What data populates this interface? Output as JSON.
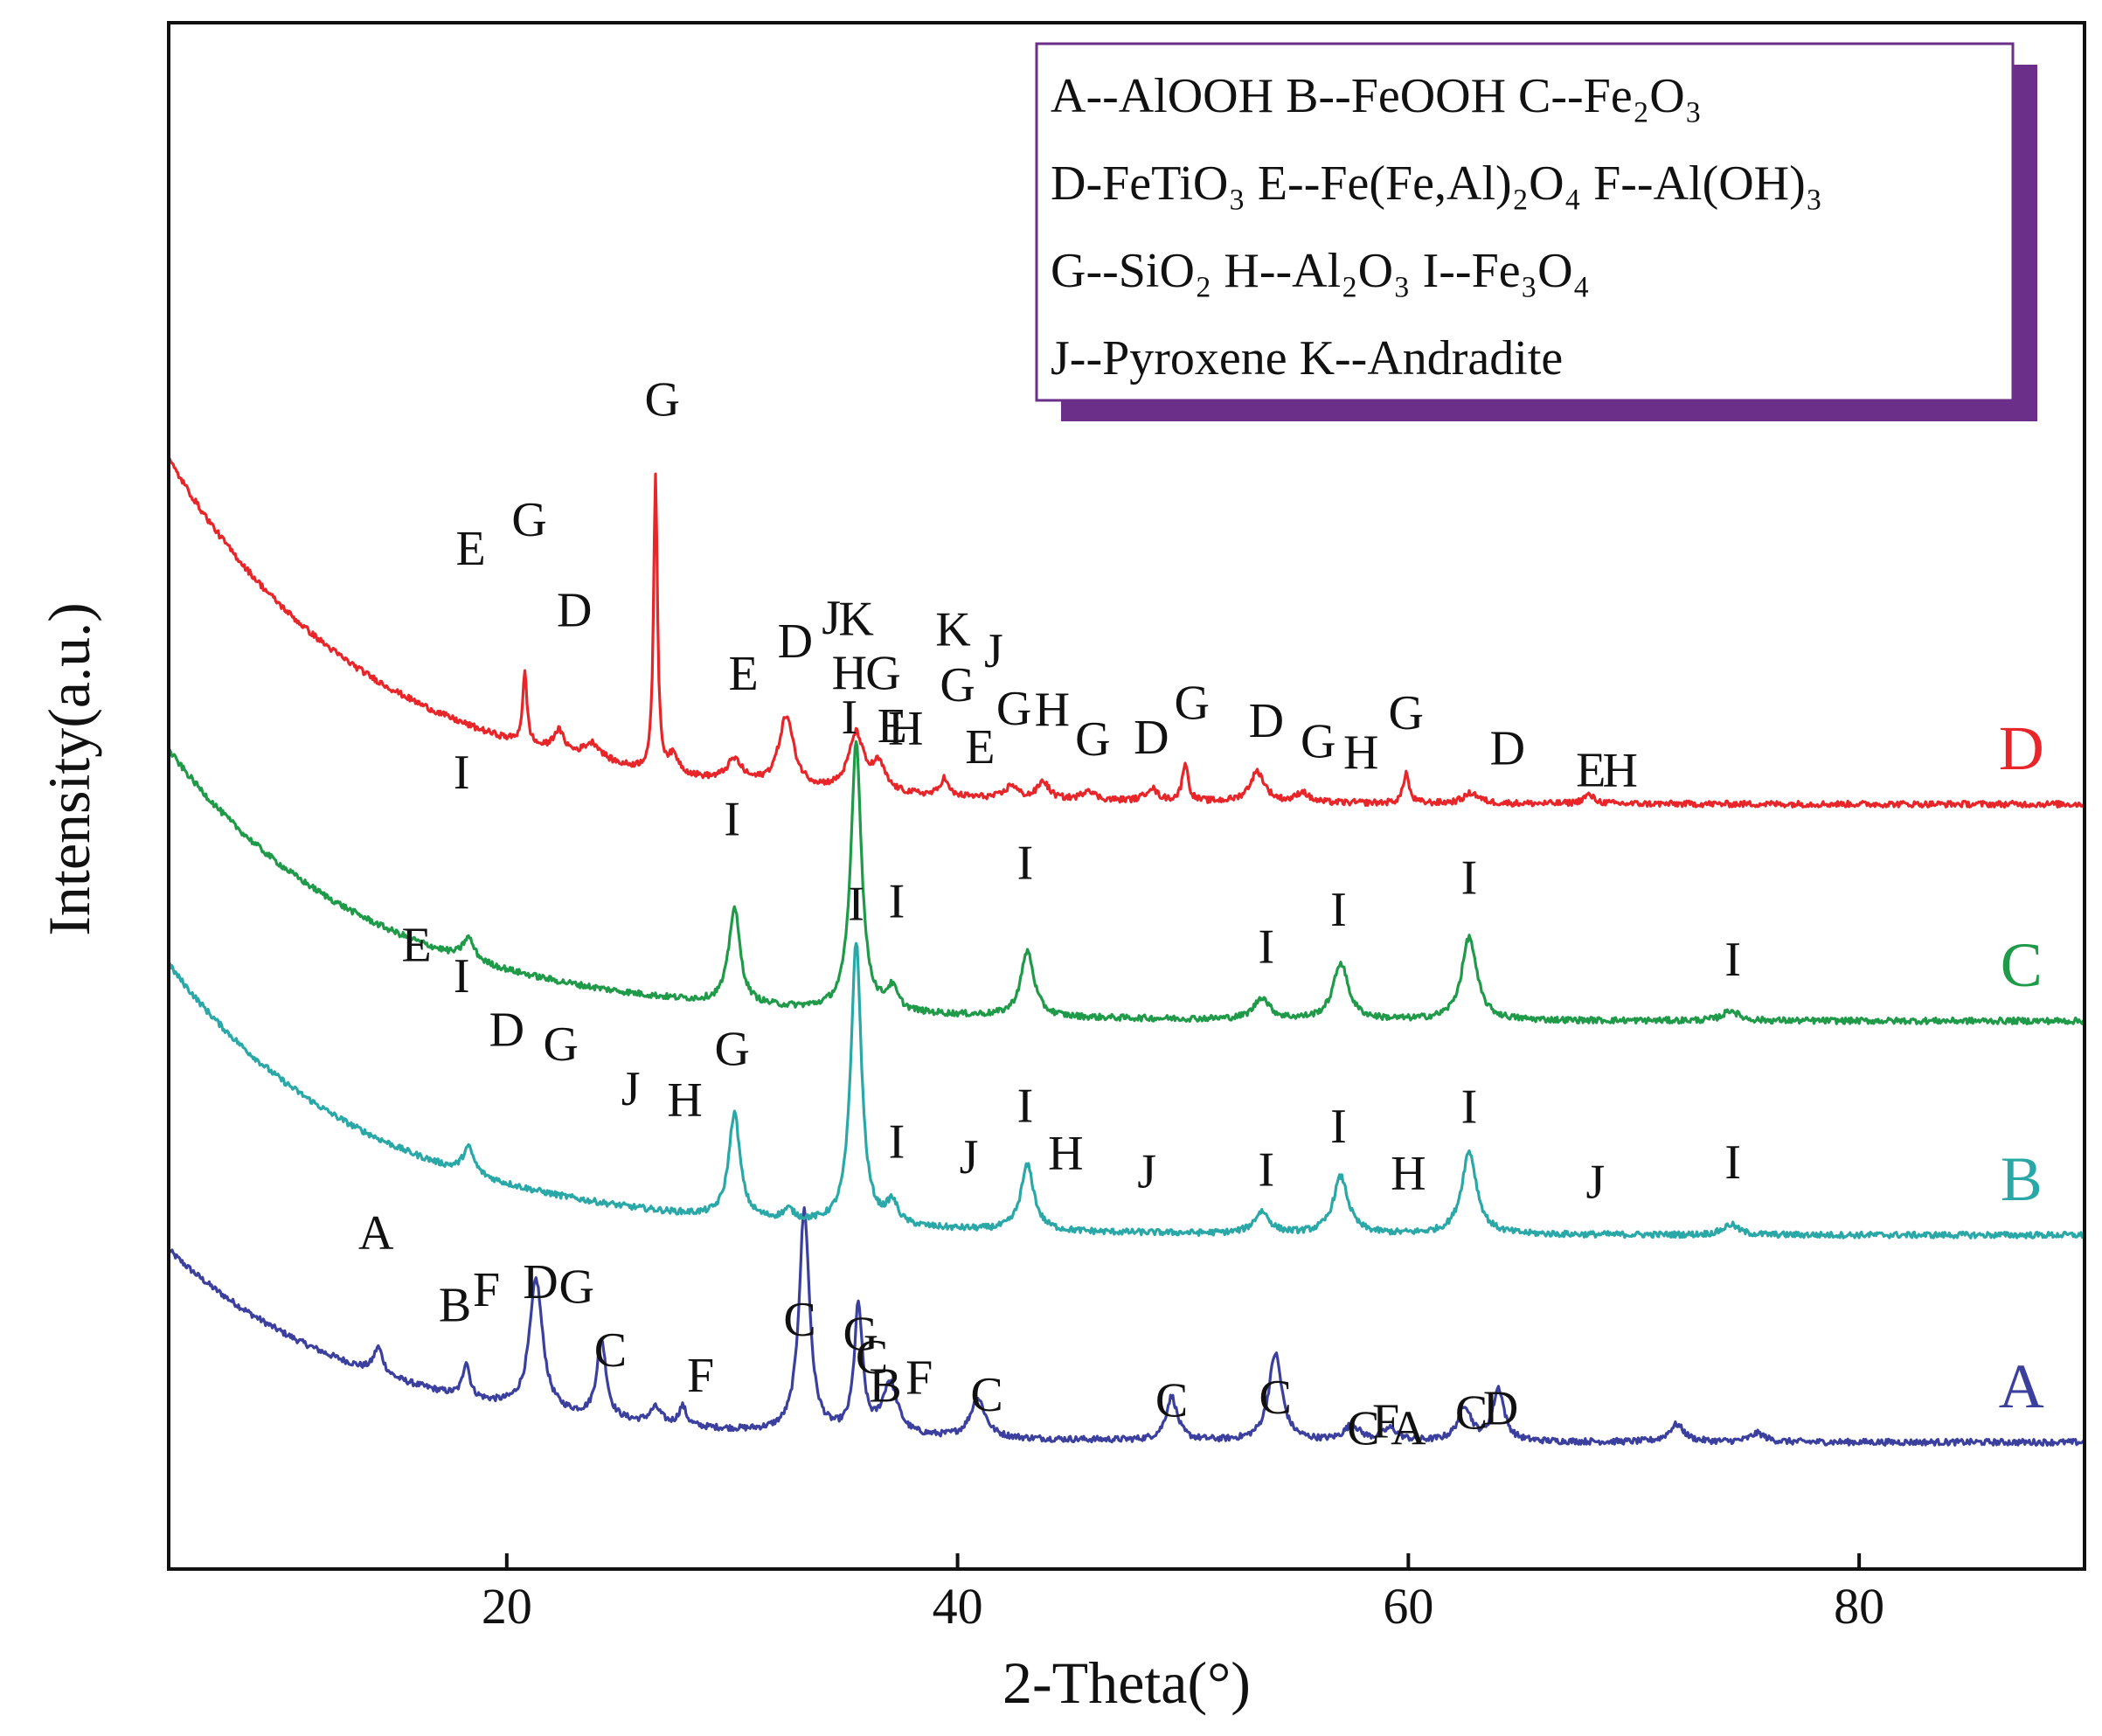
{
  "chart_data": {
    "type": "line",
    "title": "",
    "xlabel": "2-Theta(°)",
    "ylabel": "Intensity(a.u.)",
    "xlim": [
      5,
      90
    ],
    "x_ticks": [
      20,
      40,
      60,
      80
    ],
    "y_ticks": [],
    "grid": false,
    "legend_position": "top-right",
    "legend": [
      "A--AlOOH B--FeOOH C--Fe₂O₃",
      "D-FeTiO₃ E--Fe(Fe,Al)₂O₄ F--Al(OH)₃",
      "G--SiO₂ H--Al₂O₃ I--Fe₃O₄",
      "J--Pyroxene K--Andradite"
    ],
    "series": [
      {
        "name": "A",
        "color": "#3b3f9e",
        "baseline": 95,
        "rise": 220,
        "peaks": [
          [
            14.3,
            30,
            0.25
          ],
          [
            18.2,
            40,
            0.18
          ],
          [
            21.3,
            150,
            0.35
          ],
          [
            24.2,
            90,
            0.25
          ],
          [
            26.6,
            18,
            0.3
          ],
          [
            27.8,
            22,
            0.2
          ],
          [
            33.2,
            255,
            0.28
          ],
          [
            35.6,
            145,
            0.22
          ],
          [
            37.0,
            60,
            0.4
          ],
          [
            40.9,
            45,
            0.4
          ],
          [
            49.5,
            50,
            0.3
          ],
          [
            54.1,
            100,
            0.35
          ],
          [
            57.5,
            18,
            0.4
          ],
          [
            59.2,
            14,
            0.4
          ],
          [
            62.5,
            40,
            0.35
          ],
          [
            64.0,
            60,
            0.3
          ],
          [
            71.9,
            20,
            0.4
          ],
          [
            75.5,
            10,
            0.4
          ]
        ],
        "peak_labels": [
          {
            "text": "A",
            "x": 14.2,
            "y": 142
          },
          {
            "text": "B",
            "x": 17.7,
            "y": 85
          },
          {
            "text": "F",
            "x": 19.1,
            "y": 110
          },
          {
            "text": "D",
            "x": 21.5,
            "y": 130
          },
          {
            "text": "G",
            "x": 23.1,
            "y": 130
          },
          {
            "text": "C",
            "x": 24.6,
            "y": 62
          },
          {
            "text": "F",
            "x": 28.6,
            "y": 42
          },
          {
            "text": "C",
            "x": 33.0,
            "y": 112
          },
          {
            "text": "G",
            "x": 35.7,
            "y": 98
          },
          {
            "text": "C",
            "x": 36.2,
            "y": 72
          },
          {
            "text": "B",
            "x": 36.8,
            "y": 40
          },
          {
            "text": "F",
            "x": 38.3,
            "y": 50
          },
          {
            "text": "C",
            "x": 41.3,
            "y": 32
          },
          {
            "text": "C",
            "x": 49.5,
            "y": 28
          },
          {
            "text": "C",
            "x": 54.1,
            "y": 32
          },
          {
            "text": "C",
            "x": 58.0,
            "y": -3
          },
          {
            "text": "F",
            "x": 59.0,
            "y": 5
          },
          {
            "text": "A",
            "x": 60.0,
            "y": -3
          },
          {
            "text": "C",
            "x": 62.8,
            "y": 15
          },
          {
            "text": "D",
            "x": 64.1,
            "y": 20
          }
        ],
        "tag": "A"
      },
      {
        "name": "B",
        "color": "#2aa8a8",
        "baseline": 332,
        "rise": 310,
        "peaks": [
          [
            18.3,
            30,
            0.3
          ],
          [
            30.1,
            120,
            0.3
          ],
          [
            32.5,
            12,
            0.3
          ],
          [
            35.5,
            325,
            0.28
          ],
          [
            37.1,
            25,
            0.3
          ],
          [
            43.1,
            75,
            0.35
          ],
          [
            53.5,
            25,
            0.4
          ],
          [
            57.0,
            65,
            0.4
          ],
          [
            62.7,
            95,
            0.4
          ],
          [
            74.3,
            12,
            0.4
          ]
        ],
        "peak_labels": [
          {
            "text": "E",
            "x": 16.0,
            "y": 222
          },
          {
            "text": "I",
            "x": 18.0,
            "y": 205
          },
          {
            "text": "D",
            "x": 20.0,
            "y": 158
          },
          {
            "text": "G",
            "x": 22.4,
            "y": 155
          },
          {
            "text": "J",
            "x": 25.5,
            "y": 117
          },
          {
            "text": "H",
            "x": 27.9,
            "y": 112
          },
          {
            "text": "G",
            "x": 30.0,
            "y": 175
          },
          {
            "text": "I",
            "x": 35.5,
            "y": 350
          },
          {
            "text": "I",
            "x": 37.3,
            "y": 80
          },
          {
            "text": "J",
            "x": 40.5,
            "y": 65
          },
          {
            "text": "I",
            "x": 43.0,
            "y": 125
          },
          {
            "text": "H",
            "x": 44.8,
            "y": 72
          },
          {
            "text": "J",
            "x": 48.4,
            "y": 52
          },
          {
            "text": "I",
            "x": 53.7,
            "y": 55
          },
          {
            "text": "I",
            "x": 56.9,
            "y": 105
          },
          {
            "text": "H",
            "x": 60.0,
            "y": 52
          },
          {
            "text": "I",
            "x": 62.7,
            "y": 128
          },
          {
            "text": "J",
            "x": 68.3,
            "y": 42
          },
          {
            "text": "I",
            "x": 74.4,
            "y": 65
          }
        ],
        "tag": "B"
      },
      {
        "name": "C",
        "color": "#1f9a48",
        "baseline": 577,
        "rise": 310,
        "peaks": [
          [
            18.3,
            25,
            0.3
          ],
          [
            30.1,
            110,
            0.3
          ],
          [
            35.5,
            310,
            0.28
          ],
          [
            37.1,
            25,
            0.3
          ],
          [
            43.1,
            75,
            0.35
          ],
          [
            53.5,
            25,
            0.4
          ],
          [
            57.0,
            65,
            0.4
          ],
          [
            62.7,
            95,
            0.4
          ],
          [
            74.3,
            12,
            0.4
          ]
        ],
        "peak_labels": [
          {
            "text": "I",
            "x": 18.0,
            "y": 193
          },
          {
            "text": "I",
            "x": 30.0,
            "y": 193
          },
          {
            "text": "I",
            "x": 35.2,
            "y": 318
          },
          {
            "text": "E",
            "x": 37.1,
            "y": 310
          },
          {
            "text": "I",
            "x": 37.3,
            "y": 110
          },
          {
            "text": "I",
            "x": 43.0,
            "y": 158
          },
          {
            "text": "I",
            "x": 53.7,
            "y": 65
          },
          {
            "text": "I",
            "x": 56.9,
            "y": 108
          },
          {
            "text": "I",
            "x": 62.7,
            "y": 145
          },
          {
            "text": "I",
            "x": 74.4,
            "y": 52
          }
        ],
        "tag": "C"
      },
      {
        "name": "D",
        "color": "#e8262a",
        "baseline": 825,
        "rise": 395,
        "peaks": [
          [
            20.8,
            80,
            0.12
          ],
          [
            22.3,
            25,
            0.3
          ],
          [
            23.8,
            20,
            0.5
          ],
          [
            26.6,
            340,
            0.1
          ],
          [
            27.4,
            20,
            0.3
          ],
          [
            30.1,
            25,
            0.4
          ],
          [
            32.4,
            80,
            0.4
          ],
          [
            35.5,
            65,
            0.4
          ],
          [
            36.5,
            30,
            0.35
          ],
          [
            39.4,
            20,
            0.2
          ],
          [
            42.4,
            15,
            0.3
          ],
          [
            43.8,
            20,
            0.3
          ],
          [
            45.8,
            12,
            0.3
          ],
          [
            48.6,
            15,
            0.3
          ],
          [
            50.1,
            45,
            0.15
          ],
          [
            53.3,
            35,
            0.4
          ],
          [
            55.3,
            12,
            0.3
          ],
          [
            59.9,
            35,
            0.15
          ],
          [
            62.8,
            12,
            0.4
          ],
          [
            68.0,
            10,
            0.3
          ]
        ],
        "peak_labels": [
          {
            "text": "E",
            "x": 18.4,
            "y": 185
          },
          {
            "text": "G",
            "x": 21.0,
            "y": 240
          },
          {
            "text": "D",
            "x": 23.0,
            "y": 150
          },
          {
            "text": "G",
            "x": 26.9,
            "y": 410
          },
          {
            "text": "E",
            "x": 30.5,
            "y": 108
          },
          {
            "text": "D",
            "x": 32.8,
            "y": 150
          },
          {
            "text": "J",
            "x": 34.4,
            "y": 180
          },
          {
            "text": "K",
            "x": 35.5,
            "y": 180
          },
          {
            "text": "H",
            "x": 35.2,
            "y": 118
          },
          {
            "text": "G",
            "x": 36.7,
            "y": 120
          },
          {
            "text": "H",
            "x": 37.7,
            "y": 58
          },
          {
            "text": "K",
            "x": 39.8,
            "y": 173
          },
          {
            "text": "J",
            "x": 41.6,
            "y": 150
          },
          {
            "text": "G",
            "x": 40.0,
            "y": 110
          },
          {
            "text": "E",
            "x": 41.0,
            "y": 40
          },
          {
            "text": "G",
            "x": 42.5,
            "y": 85
          },
          {
            "text": "H",
            "x": 44.2,
            "y": 85
          },
          {
            "text": "G",
            "x": 46.0,
            "y": 52
          },
          {
            "text": "D",
            "x": 48.6,
            "y": 55
          },
          {
            "text": "G",
            "x": 50.4,
            "y": 95
          },
          {
            "text": "D",
            "x": 53.7,
            "y": 75
          },
          {
            "text": "G",
            "x": 56.0,
            "y": 52
          },
          {
            "text": "H",
            "x": 57.9,
            "y": 40
          },
          {
            "text": "G",
            "x": 59.9,
            "y": 85
          },
          {
            "text": "D",
            "x": 64.4,
            "y": 45
          },
          {
            "text": "E",
            "x": 68.1,
            "y": 20
          },
          {
            "text": "H",
            "x": 69.4,
            "y": 20
          }
        ],
        "tag": "D"
      }
    ]
  }
}
